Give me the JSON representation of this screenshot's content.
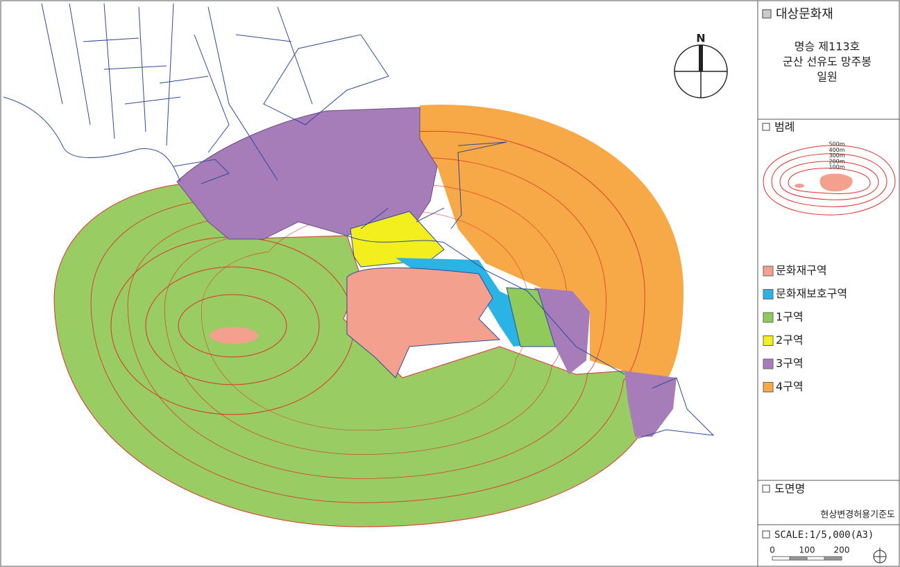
{
  "header": {
    "title": "대상문화재",
    "lines": [
      "명승 제113호",
      "군산 선유도 망주봉",
      "일원"
    ]
  },
  "compass": {
    "label": "N"
  },
  "legend": {
    "title": "범례",
    "contours": [
      "500m",
      "400m",
      "300m",
      "200m",
      "100m"
    ],
    "items": [
      {
        "label": "문화재구역",
        "color": "#f4a08f"
      },
      {
        "label": "문화재보호구역",
        "color": "#2cb3e6"
      },
      {
        "label": "1구역",
        "color": "#8fca5a"
      },
      {
        "label": "2구역",
        "color": "#f3ee1e"
      },
      {
        "label": "3구역",
        "color": "#a67db8"
      },
      {
        "label": "4구역",
        "color": "#f7a947"
      }
    ]
  },
  "drawing": {
    "title": "도면명",
    "name": "현상변경허용기준도"
  },
  "scale": {
    "label": "SCALE:1/5,000(A3)",
    "ticks": [
      "0",
      "100",
      "200"
    ]
  }
}
